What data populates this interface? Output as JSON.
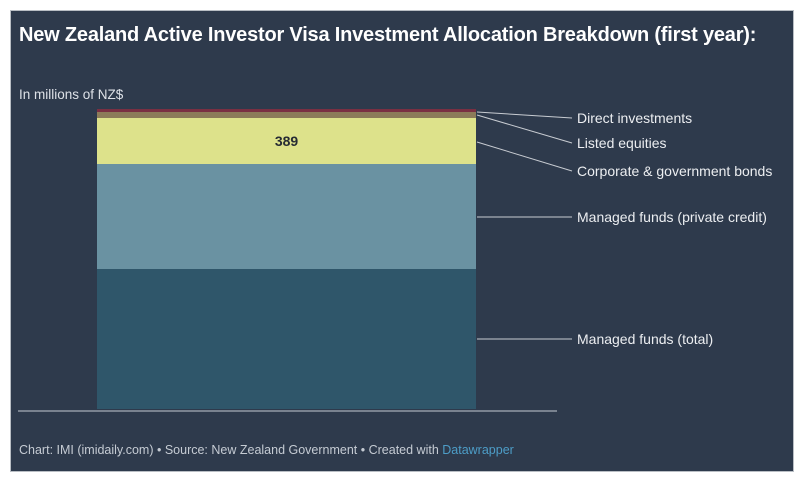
{
  "header": {
    "title": "New Zealand Active Investor Visa Investment Allocation Breakdown (first year):",
    "subtitle": "In millions of NZ$"
  },
  "chart_data": {
    "type": "bar",
    "stacked": true,
    "orientation": "vertical",
    "title": "New Zealand Active Investor Visa Investment Allocation Breakdown (first year)",
    "unit": "millions of NZ$",
    "value_axis_shown": false,
    "grid": false,
    "legend_position": "right-leader-lines",
    "segments": [
      {
        "label": "Direct investments",
        "value": 25,
        "approx": true,
        "data_label": "",
        "color": "#7a2f42"
      },
      {
        "label": "Listed equities",
        "value": 50,
        "approx": true,
        "data_label": "",
        "color": "#8c7b59"
      },
      {
        "label": "Corporate & government bonds",
        "value": 389,
        "approx": false,
        "data_label": "389",
        "color": "#dde28b"
      },
      {
        "label": "Managed funds (private credit)",
        "value": 875,
        "approx": true,
        "data_label": "",
        "color": "#6a92a2"
      },
      {
        "label": "Managed funds (total)",
        "value": 1170,
        "approx": true,
        "data_label": "",
        "color": "#2f566a"
      }
    ]
  },
  "footer": {
    "prefix": "Chart: IMI (imidaily.com) • Source: New Zealand Government • Created with ",
    "link_label": "Datawrapper"
  },
  "colors": {
    "page_background": "#ffffff",
    "card_background": "#2e3a4c",
    "card_border": "#b9bec4",
    "title_text": "#ffffff",
    "subtitle_text": "#dde1e7",
    "segment_label_text": "#eceef1",
    "value_label_text": "#262b33",
    "leader_line": "#c8ccd2",
    "baseline": "#79828f",
    "footer_text": "#c5cbd3",
    "datawrapper_link": "#4d9dc7"
  }
}
